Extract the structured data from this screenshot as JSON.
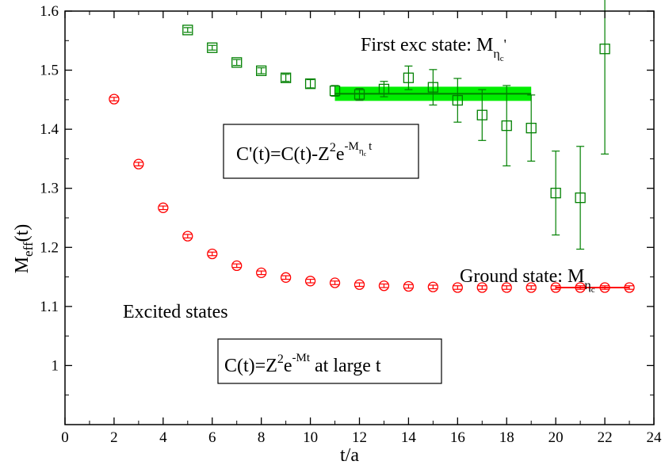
{
  "chart_data": {
    "type": "scatter",
    "xlabel": "t/a",
    "ylabel": "M_eff(t)",
    "ylabel_main": "M",
    "ylabel_sub": "eff",
    "ylabel_tail": "(t)",
    "xlim": [
      0,
      24
    ],
    "ylim": [
      0.9,
      1.6
    ],
    "xticks": [
      0,
      2,
      4,
      6,
      8,
      10,
      12,
      14,
      16,
      18,
      20,
      22,
      24
    ],
    "yticks": [
      1,
      1.1,
      1.2,
      1.3,
      1.4,
      1.5,
      1.6
    ],
    "grid": false,
    "legend": "none",
    "series": [
      {
        "marker": "circle",
        "color": "#ff0000",
        "points": [
          {
            "x": 2,
            "y": 1.451,
            "err": 0.003
          },
          {
            "x": 3,
            "y": 1.341,
            "err": 0.003
          },
          {
            "x": 4,
            "y": 1.267,
            "err": 0.003
          },
          {
            "x": 5,
            "y": 1.219,
            "err": 0.003
          },
          {
            "x": 6,
            "y": 1.189,
            "err": 0.003
          },
          {
            "x": 7,
            "y": 1.169,
            "err": 0.003
          },
          {
            "x": 8,
            "y": 1.157,
            "err": 0.003
          },
          {
            "x": 9,
            "y": 1.149,
            "err": 0.003
          },
          {
            "x": 10,
            "y": 1.143,
            "err": 0.003
          },
          {
            "x": 11,
            "y": 1.14,
            "err": 0.003
          },
          {
            "x": 12,
            "y": 1.137,
            "err": 0.003
          },
          {
            "x": 13,
            "y": 1.135,
            "err": 0.003
          },
          {
            "x": 14,
            "y": 1.134,
            "err": 0.003
          },
          {
            "x": 15,
            "y": 1.133,
            "err": 0.003
          },
          {
            "x": 16,
            "y": 1.132,
            "err": 0.003
          },
          {
            "x": 17,
            "y": 1.132,
            "err": 0.003
          },
          {
            "x": 18,
            "y": 1.132,
            "err": 0.003
          },
          {
            "x": 19,
            "y": 1.132,
            "err": 0.003
          },
          {
            "x": 20,
            "y": 1.132,
            "err": 0.003
          },
          {
            "x": 21,
            "y": 1.132,
            "err": 0.003
          },
          {
            "x": 22,
            "y": 1.132,
            "err": 0.003
          },
          {
            "x": 23,
            "y": 1.132,
            "err": 0.003
          }
        ]
      },
      {
        "marker": "square",
        "color": "#008000",
        "points": [
          {
            "x": 5,
            "y": 1.568,
            "err": 0.004
          },
          {
            "x": 6,
            "y": 1.538,
            "err": 0.004
          },
          {
            "x": 7,
            "y": 1.513,
            "err": 0.005
          },
          {
            "x": 8,
            "y": 1.499,
            "err": 0.005
          },
          {
            "x": 9,
            "y": 1.487,
            "err": 0.006
          },
          {
            "x": 10,
            "y": 1.477,
            "err": 0.007
          },
          {
            "x": 11,
            "y": 1.465,
            "err": 0.009
          },
          {
            "x": 12,
            "y": 1.459,
            "err": 0.01
          },
          {
            "x": 13,
            "y": 1.468,
            "err": 0.013
          },
          {
            "x": 14,
            "y": 1.487,
            "err": 0.02
          },
          {
            "x": 15,
            "y": 1.471,
            "err": 0.03
          },
          {
            "x": 16,
            "y": 1.449,
            "err": 0.037
          },
          {
            "x": 17,
            "y": 1.424,
            "err": 0.043
          },
          {
            "x": 18,
            "y": 1.406,
            "err": 0.068
          },
          {
            "x": 19,
            "y": 1.402,
            "err": 0.056
          },
          {
            "x": 20,
            "y": 1.292,
            "err": 0.071
          },
          {
            "x": 21,
            "y": 1.284,
            "err": 0.087
          },
          {
            "x": 22,
            "y": 1.536,
            "err": 0.178
          }
        ]
      }
    ],
    "fits": [
      {
        "x_from": 11,
        "x_to": 19,
        "y": 1.46,
        "band": 0.012,
        "color": "#008000",
        "band_color": "#00ee00"
      },
      {
        "x_from": 20,
        "x_to": 23,
        "y": 1.132,
        "band": 0,
        "color": "#ff0000"
      }
    ],
    "annotations": {
      "first_exc": {
        "text": "First exc state: M",
        "sub": "η",
        "subsub": "c",
        "prime": "'"
      },
      "ground": {
        "text": "Ground state: M",
        "sub": "η",
        "subsub": "c"
      },
      "excited": {
        "text": "Excited states"
      },
      "formula_exc": {
        "pre": "C'(t)=C(t)-Z",
        "sup_pre": "2",
        "mid": "e",
        "sup": "-M",
        "sup_sub": "η",
        "sup_subsub": "c",
        "sup_tail": "t"
      },
      "formula_ground": {
        "pre": "C(t)=Z",
        "sup_pre": "2",
        "mid": "e",
        "sup": "-Mt",
        "tail": " at large t"
      }
    }
  }
}
